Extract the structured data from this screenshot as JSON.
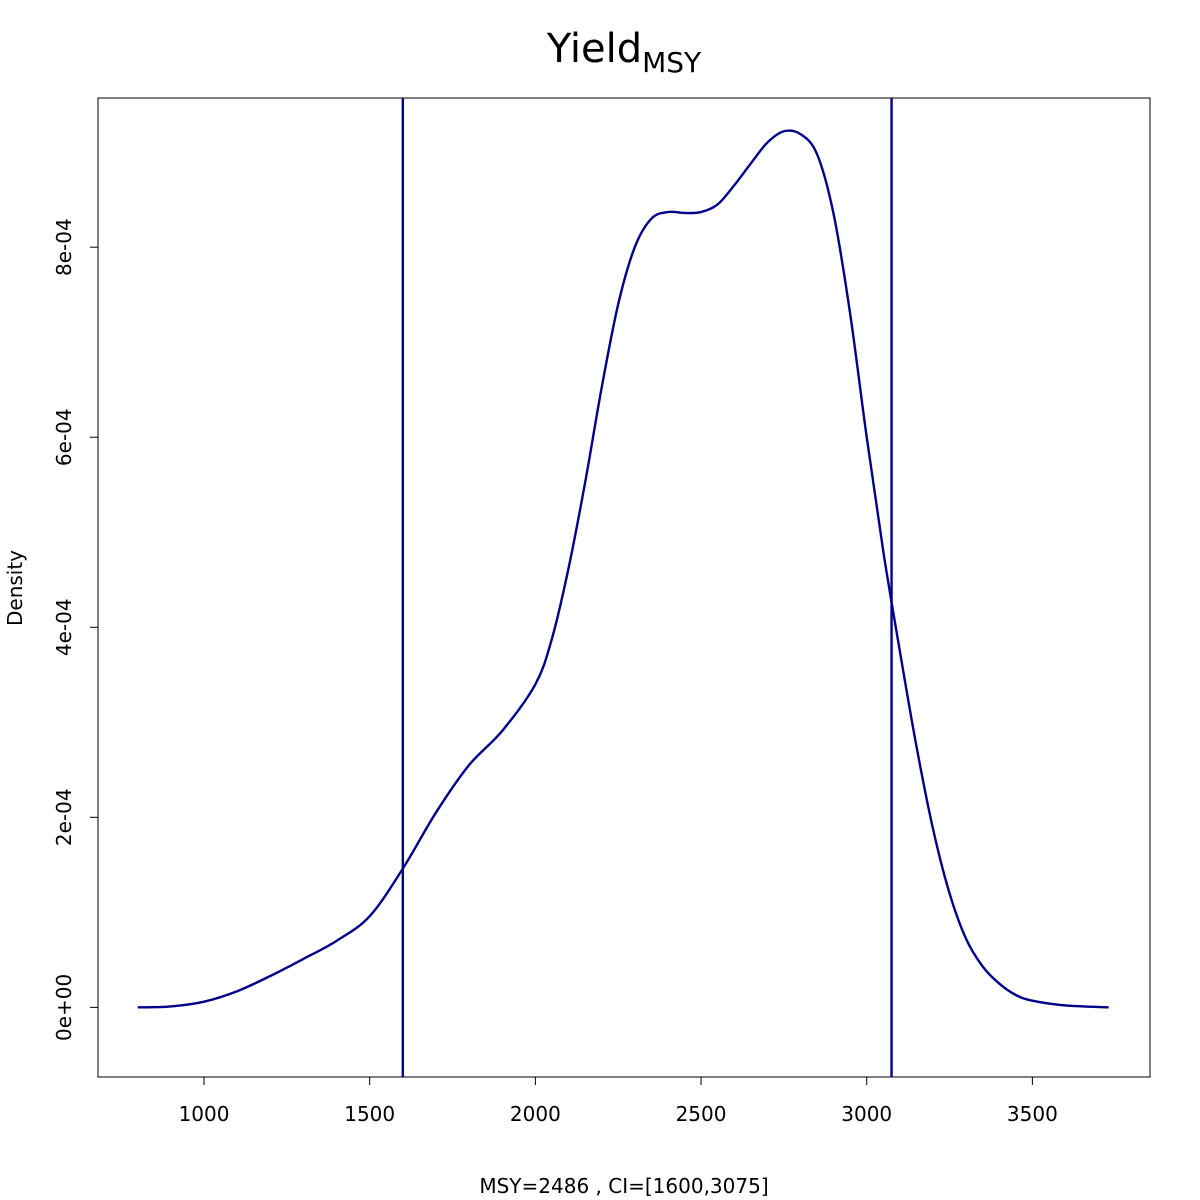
{
  "chart_data": {
    "type": "line",
    "title": "Yield",
    "title_subscript": "MSY",
    "xlabel": "MSY=2486 , CI=[1600,3075]",
    "ylabel": "Density",
    "xlim": [
      680,
      3855
    ],
    "ylim": [
      -7.33e-05,
      0.000957
    ],
    "x_ticks": [
      {
        "value": 1000,
        "label": "1000"
      },
      {
        "value": 1500,
        "label": "1500"
      },
      {
        "value": 2000,
        "label": "2000"
      },
      {
        "value": 2500,
        "label": "2500"
      },
      {
        "value": 3000,
        "label": "3000"
      },
      {
        "value": 3500,
        "label": "3500"
      }
    ],
    "y_ticks": [
      {
        "value": 0,
        "label": "0e+00"
      },
      {
        "value": 0.0002,
        "label": "2e-04"
      },
      {
        "value": 0.0004,
        "label": "4e-04"
      },
      {
        "value": 0.0006,
        "label": "6e-04"
      },
      {
        "value": 0.0008,
        "label": "8e-04"
      }
    ],
    "series": [
      {
        "color": "#00008B",
        "x": [
          800,
          900,
          1000,
          1100,
          1200,
          1300,
          1400,
          1500,
          1600,
          1700,
          1800,
          1900,
          2000,
          2050,
          2100,
          2150,
          2200,
          2250,
          2300,
          2350,
          2400,
          2450,
          2500,
          2550,
          2600,
          2650,
          2700,
          2750,
          2800,
          2850,
          2900,
          2950,
          3000,
          3050,
          3100,
          3150,
          3200,
          3250,
          3300,
          3350,
          3400,
          3450,
          3500,
          3600,
          3730
        ],
        "y": [
          0.0,
          1e-06,
          6e-06,
          1.7e-05,
          3.3e-05,
          5.1e-05,
          7e-05,
          9.6e-05,
          0.000146,
          0.000205,
          0.000255,
          0.000291,
          0.00034,
          0.000388,
          0.000462,
          0.000552,
          0.000652,
          0.00074,
          0.0008,
          0.00083,
          0.000837,
          0.000836,
          0.000837,
          0.000845,
          0.000865,
          0.000888,
          0.00091,
          0.000922,
          0.000919,
          0.000898,
          0.000835,
          0.00073,
          0.0006,
          0.00048,
          0.000375,
          0.000275,
          0.000188,
          0.00012,
          7.2e-05,
          4.3e-05,
          2.5e-05,
          1.3e-05,
          7e-06,
          2e-06,
          0.0
        ]
      }
    ],
    "vlines": [
      1600,
      3075
    ],
    "vline_color": "#00008B",
    "grid": false,
    "frame": "box"
  }
}
